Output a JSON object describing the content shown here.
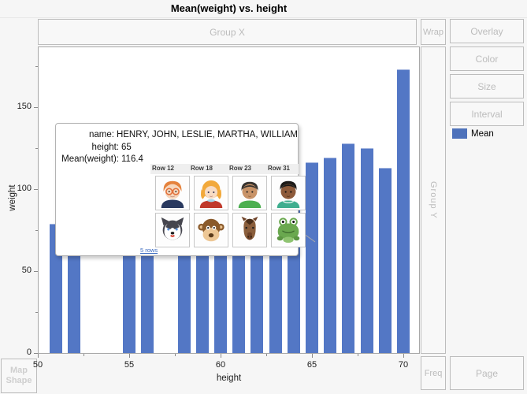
{
  "title": "Mean(weight) vs. height",
  "zones": {
    "group_x": "Group X",
    "wrap": "Wrap",
    "group_y": "Group Y",
    "freq": "Freq",
    "page": "Page",
    "map_shape": [
      "Map",
      "Shape"
    ]
  },
  "buttons": {
    "overlay": "Overlay",
    "color": "Color",
    "size": "Size",
    "interval": "Interval"
  },
  "legend": {
    "label": "Mean",
    "swatch_color": "#4e72bb"
  },
  "chart_data": {
    "type": "bar",
    "title": "Mean(weight) vs. height",
    "xlabel": "height",
    "ylabel": "weight",
    "series_name": "Mean",
    "bar_color": "#5377c5",
    "x": [
      51,
      52,
      55,
      56,
      58,
      59,
      60,
      61,
      62,
      63,
      64,
      65,
      66,
      67,
      68,
      69,
      70
    ],
    "values": [
      79,
      64,
      74,
      67,
      95,
      87,
      96,
      110,
      96,
      94,
      101,
      116.4,
      119,
      128,
      125,
      113,
      173
    ],
    "x_major_ticks": [
      50,
      55,
      60,
      65,
      70
    ],
    "x_minor_ticks": [
      52.5,
      57.5,
      62.5,
      67.5
    ],
    "y_major_ticks": [
      0,
      50,
      100,
      150
    ],
    "y_minor_ticks": [
      25,
      75,
      125,
      175
    ],
    "xlim": [
      50,
      70.9
    ],
    "ylim": [
      0,
      186.5
    ],
    "grid": false,
    "legend_position": "right"
  },
  "tooltip": {
    "rows": [
      {
        "label": "name:",
        "value": "HENRY, JOHN, LESLIE, MARTHA, WILLIAM"
      },
      {
        "label": "height:",
        "value": "65"
      },
      {
        "label": "Mean(weight):",
        "value": "116.4"
      }
    ],
    "columns": [
      {
        "header": "Row 12",
        "top_avatar": "boy-glasses-avatar",
        "bottom_avatar": "husky-dog-avatar"
      },
      {
        "header": "Row 18",
        "top_avatar": "girl-blonde-avatar",
        "bottom_avatar": "monkey-avatar"
      },
      {
        "header": "Row 23",
        "top_avatar": "boy-darkhair-avatar",
        "bottom_avatar": "horse-avatar"
      },
      {
        "header": "Row 31",
        "top_avatar": "boy-brown-avatar",
        "bottom_avatar": "frog-avatar"
      }
    ],
    "link": "5 rows"
  }
}
